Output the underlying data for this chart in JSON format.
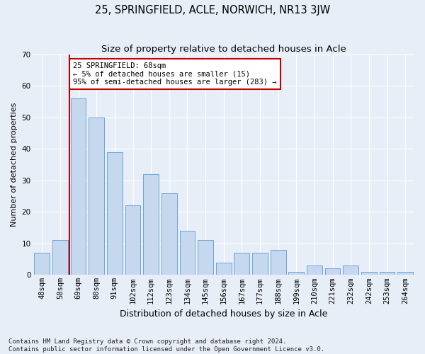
{
  "title": "25, SPRINGFIELD, ACLE, NORWICH, NR13 3JW",
  "subtitle": "Size of property relative to detached houses in Acle",
  "xlabel": "Distribution of detached houses by size in Acle",
  "ylabel": "Number of detached properties",
  "categories": [
    "48sqm",
    "58sqm",
    "69sqm",
    "80sqm",
    "91sqm",
    "102sqm",
    "112sqm",
    "123sqm",
    "134sqm",
    "145sqm",
    "156sqm",
    "167sqm",
    "177sqm",
    "188sqm",
    "199sqm",
    "210sqm",
    "221sqm",
    "232sqm",
    "242sqm",
    "253sqm",
    "264sqm"
  ],
  "values": [
    7,
    11,
    56,
    50,
    39,
    22,
    32,
    26,
    14,
    11,
    4,
    7,
    7,
    8,
    1,
    3,
    2,
    3,
    1,
    1,
    1
  ],
  "bar_color": "#c5d8ed",
  "bar_edge_color": "#5b9bd5",
  "bar_edge_width": 0.6,
  "vline_index": 2,
  "vline_color": "#c00000",
  "annotation_line1": "25 SPRINGFIELD: 68sqm",
  "annotation_line2": "← 5% of detached houses are smaller (15)",
  "annotation_line3": "95% of semi-detached houses are larger (283) →",
  "annotation_box_color": "#ffffff",
  "annotation_box_edge_color": "#c00000",
  "ylim": [
    0,
    70
  ],
  "yticks": [
    0,
    10,
    20,
    30,
    40,
    50,
    60,
    70
  ],
  "footnote": "Contains HM Land Registry data © Crown copyright and database right 2024.\nContains public sector information licensed under the Open Government Licence v3.0.",
  "title_fontsize": 10.5,
  "subtitle_fontsize": 9.5,
  "xlabel_fontsize": 9,
  "ylabel_fontsize": 8,
  "tick_fontsize": 7.5,
  "footnote_fontsize": 6.5,
  "annotation_fontsize": 7.5,
  "fig_bg_color": "#e8eef8",
  "plot_bg_color": "#e8eef8"
}
